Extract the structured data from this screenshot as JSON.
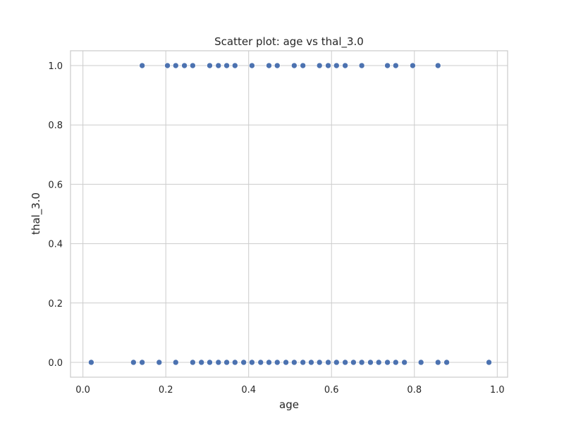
{
  "chart_data": {
    "type": "scatter",
    "title": "Scatter plot: age vs thal_3.0",
    "xlabel": "age",
    "ylabel": "thal_3.0",
    "xlim": [
      -0.03,
      1.025
    ],
    "ylim": [
      -0.05,
      1.05
    ],
    "xticks": [
      "0.0",
      "0.2",
      "0.4",
      "0.6",
      "0.8",
      "1.0"
    ],
    "yticks": [
      "0.0",
      "0.2",
      "0.4",
      "0.6",
      "0.8",
      "1.0"
    ],
    "grid": true,
    "colors": {
      "point": "#4c72b0",
      "grid": "#cccccc",
      "axes_edge": "#cccccc",
      "text": "#262626"
    },
    "series": [
      {
        "x": [
          0.143,
          0.204,
          0.224,
          0.245,
          0.265,
          0.306,
          0.327,
          0.347,
          0.367,
          0.408,
          0.449,
          0.469,
          0.51,
          0.531,
          0.571,
          0.592,
          0.612,
          0.633,
          0.673,
          0.735,
          0.755,
          0.796,
          0.857
        ],
        "y": [
          1,
          1,
          1,
          1,
          1,
          1,
          1,
          1,
          1,
          1,
          1,
          1,
          1,
          1,
          1,
          1,
          1,
          1,
          1,
          1,
          1,
          1,
          1
        ]
      },
      {
        "x": [
          0.02,
          0.122,
          0.143,
          0.184,
          0.224,
          0.265,
          0.286,
          0.306,
          0.327,
          0.347,
          0.367,
          0.388,
          0.408,
          0.429,
          0.449,
          0.469,
          0.49,
          0.51,
          0.531,
          0.551,
          0.571,
          0.592,
          0.612,
          0.633,
          0.653,
          0.673,
          0.694,
          0.714,
          0.735,
          0.755,
          0.776,
          0.816,
          0.857,
          0.878,
          0.98
        ],
        "y": [
          0,
          0,
          0,
          0,
          0,
          0,
          0,
          0,
          0,
          0,
          0,
          0,
          0,
          0,
          0,
          0,
          0,
          0,
          0,
          0,
          0,
          0,
          0,
          0,
          0,
          0,
          0,
          0,
          0,
          0,
          0,
          0,
          0,
          0,
          0
        ]
      }
    ]
  }
}
